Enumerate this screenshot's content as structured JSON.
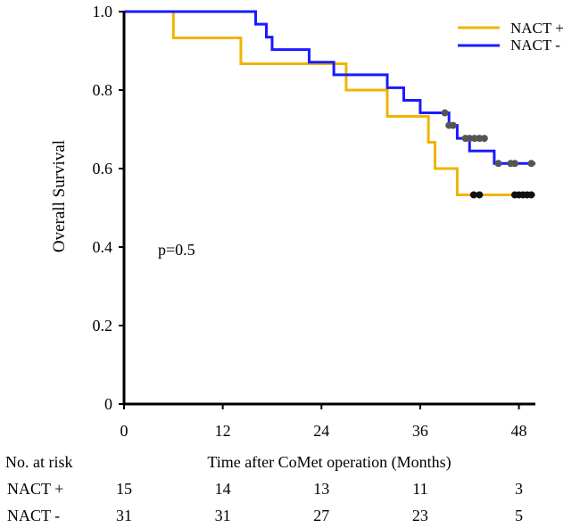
{
  "chart_data": {
    "type": "line",
    "title": "",
    "xlabel": "Time after CoMet operation (Months)",
    "ylabel": "Overall Survival",
    "xlim": [
      0,
      50
    ],
    "ylim": [
      0,
      1.0
    ],
    "x_ticks": [
      0,
      12,
      24,
      36,
      48
    ],
    "x_tick_labels": [
      "0",
      "12",
      "24",
      "36",
      "48"
    ],
    "y_ticks": [
      0,
      0.2,
      0.4,
      0.6,
      0.8,
      1.0
    ],
    "y_tick_labels": [
      "0",
      "0.2",
      "0.4",
      "0.6",
      "0.8",
      "1.0"
    ],
    "grid": false,
    "legend_position": "top-right",
    "annotation": "p=0.5",
    "series": [
      {
        "name": "NACT +",
        "color": "#f0b400",
        "marker_color": "#111111",
        "steps": [
          [
            0,
            1.0
          ],
          [
            6,
            0.933
          ],
          [
            14.2,
            0.867
          ],
          [
            27,
            0.8
          ],
          [
            32,
            0.733
          ],
          [
            37,
            0.667
          ],
          [
            37.8,
            0.6
          ],
          [
            40.5,
            0.533
          ],
          [
            50,
            0.533
          ]
        ],
        "censored": [
          [
            42.5,
            0.533
          ],
          [
            43.2,
            0.533
          ],
          [
            47.5,
            0.533
          ],
          [
            48,
            0.533
          ],
          [
            48.5,
            0.533
          ],
          [
            49,
            0.533
          ],
          [
            49.5,
            0.533
          ]
        ]
      },
      {
        "name": "NACT -",
        "color": "#1a1aff",
        "marker_color": "#555555",
        "steps": [
          [
            0,
            1.0
          ],
          [
            16,
            0.968
          ],
          [
            17.3,
            0.935
          ],
          [
            18,
            0.903
          ],
          [
            22.5,
            0.871
          ],
          [
            25.5,
            0.839
          ],
          [
            32,
            0.806
          ],
          [
            34,
            0.774
          ],
          [
            36,
            0.742
          ],
          [
            39.5,
            0.71
          ],
          [
            40.5,
            0.677
          ],
          [
            42,
            0.645
          ],
          [
            45,
            0.613
          ],
          [
            50,
            0.613
          ]
        ],
        "censored": [
          [
            39,
            0.742
          ],
          [
            39.5,
            0.71
          ],
          [
            40,
            0.71
          ],
          [
            41.5,
            0.677
          ],
          [
            42,
            0.677
          ],
          [
            42.6,
            0.677
          ],
          [
            43.2,
            0.677
          ],
          [
            43.8,
            0.677
          ],
          [
            45.5,
            0.613
          ],
          [
            47,
            0.613
          ],
          [
            47.5,
            0.613
          ],
          [
            49.5,
            0.613
          ]
        ]
      }
    ],
    "risk_table": {
      "header": "No. at risk",
      "rows": [
        {
          "label": "NACT +",
          "values": [
            "15",
            "14",
            "13",
            "11",
            "3"
          ]
        },
        {
          "label": "NACT -",
          "values": [
            "31",
            "31",
            "27",
            "23",
            "5"
          ]
        }
      ]
    }
  }
}
